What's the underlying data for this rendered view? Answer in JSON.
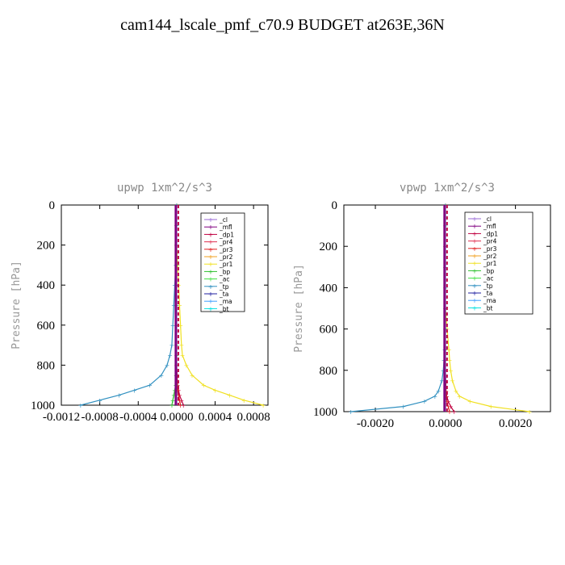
{
  "figure_title": "cam144_lscale_pmf_c70.9  BUDGET at263E,36N",
  "legend_entries": [
    "_cl",
    "_mfl",
    "_dp1",
    "_pr4",
    "_pr3",
    "_pr2",
    "_pr1",
    "_bp",
    "_ac",
    "_tp",
    "_ta",
    "_ma",
    "_bt"
  ],
  "series_colors": {
    "_cl": "#9a6ad6",
    "_mfl": "#800080",
    "_dp1": "#c00040",
    "_pr4": "#e03050",
    "_pr3": "#e02020",
    "_pr2": "#f0a020",
    "_pr1": "#f0e020",
    "_bp": "#30c030",
    "_ac": "#40e040",
    "_tp": "#3090c0",
    "_ta": "#2020a0",
    "_ma": "#40a0ff",
    "_bt": "#00e0e0"
  },
  "chart_data": [
    {
      "type": "line",
      "title": "upwp   1xm^2/s^3",
      "ylabel": "Pressure [hPa]",
      "xlabel": "",
      "ylim": [
        1000,
        0
      ],
      "xlim": [
        -0.0012,
        0.00095
      ],
      "xticks": [
        -0.0012,
        -0.0008,
        -0.0004,
        0.0,
        0.0004,
        0.0008
      ],
      "xtick_labels": [
        "-0.0012",
        "-0.0008",
        "-0.0004",
        "0.0000",
        "0.0004",
        "0.0008"
      ],
      "yticks": [
        0,
        200,
        400,
        600,
        800,
        1000
      ],
      "ytick_labels": [
        "0",
        "200",
        "400",
        "600",
        "800",
        "1000"
      ],
      "pressure": [
        0,
        100,
        200,
        300,
        400,
        500,
        600,
        700,
        750,
        800,
        850,
        900,
        925,
        950,
        975,
        1000
      ],
      "series": [
        {
          "name": "_cl",
          "values": [
            0,
            0,
            0,
            0,
            0,
            0,
            0,
            0,
            0,
            0,
            0,
            0,
            0,
            0,
            0,
            0
          ]
        },
        {
          "name": "_mfl",
          "values": [
            0,
            0,
            0,
            0,
            0,
            0,
            0,
            0,
            0,
            0,
            0,
            0,
            0,
            0,
            0,
            0
          ]
        },
        {
          "name": "_dp1",
          "values": [
            0,
            0,
            0,
            0,
            0,
            0,
            0,
            0,
            0,
            0,
            5e-06,
            1e-05,
            2e-05,
            3e-05,
            5e-05,
            7e-05
          ]
        },
        {
          "name": "_pr4",
          "values": [
            0,
            0,
            0,
            0,
            0,
            0,
            0,
            0,
            0,
            0,
            0,
            0,
            0,
            0,
            0,
            0
          ]
        },
        {
          "name": "_pr3",
          "values": [
            0,
            0,
            0,
            0,
            0,
            0,
            0,
            0,
            0,
            0,
            0,
            5e-06,
            1e-05,
            2e-05,
            3e-05,
            4e-05
          ]
        },
        {
          "name": "_pr2",
          "values": [
            0,
            0,
            0,
            0,
            0,
            0,
            0,
            0,
            0,
            0,
            0,
            0,
            0,
            0,
            0,
            0
          ]
        },
        {
          "name": "_pr1",
          "values": [
            0,
            0,
            0,
            1e-05,
            2e-05,
            3e-05,
            4e-05,
            5e-05,
            6e-05,
            0.0001,
            0.00016,
            0.00028,
            0.0004,
            0.00055,
            0.0007,
            0.0009
          ]
        },
        {
          "name": "_bp",
          "values": [
            0,
            0,
            0,
            0,
            0,
            0,
            0,
            0,
            0,
            0,
            -5e-06,
            -1e-05,
            -2e-05,
            -3e-05,
            -4e-05,
            -5e-05
          ]
        },
        {
          "name": "_ac",
          "values": [
            0,
            0,
            0,
            0,
            0,
            0,
            0,
            0,
            0,
            0,
            0,
            0,
            0,
            0,
            0,
            0
          ]
        },
        {
          "name": "_tp",
          "values": [
            0,
            0,
            0,
            -1e-05,
            -2e-05,
            -3e-05,
            -4e-05,
            -5e-05,
            -7e-05,
            -0.0001,
            -0.00016,
            -0.00028,
            -0.00044,
            -0.0006,
            -0.0008,
            -0.001
          ]
        },
        {
          "name": "_ta",
          "values": [
            0,
            0,
            0,
            0,
            0,
            0,
            0,
            0,
            0,
            0,
            0,
            0,
            0,
            0,
            0,
            0
          ]
        },
        {
          "name": "_ma",
          "values": [
            0,
            0,
            0,
            0,
            0,
            0,
            0,
            0,
            0,
            0,
            0,
            0,
            0,
            0,
            0,
            0
          ]
        },
        {
          "name": "_bt",
          "values": [
            0,
            0,
            0,
            0,
            0,
            0,
            0,
            0,
            0,
            0,
            0,
            0,
            0,
            0,
            0,
            0
          ]
        }
      ]
    },
    {
      "type": "line",
      "title": "vpwp   1xm^2/s^3",
      "ylabel": "Pressure [hPa]",
      "xlabel": "",
      "ylim": [
        1000,
        0
      ],
      "xlim": [
        -0.0029,
        0.003
      ],
      "xticks": [
        -0.002,
        0.0,
        0.002
      ],
      "xtick_labels": [
        "-0.0020",
        "0.0000",
        "0.0020"
      ],
      "yticks": [
        0,
        200,
        400,
        600,
        800,
        1000
      ],
      "ytick_labels": [
        "0",
        "200",
        "400",
        "600",
        "800",
        "1000"
      ],
      "pressure": [
        0,
        100,
        200,
        300,
        400,
        500,
        600,
        700,
        750,
        800,
        850,
        900,
        925,
        950,
        975,
        1000
      ],
      "series": [
        {
          "name": "_cl",
          "values": [
            0,
            0,
            0,
            0,
            0,
            0,
            0,
            0,
            0,
            0,
            0,
            0,
            0,
            0,
            0,
            0
          ]
        },
        {
          "name": "_mfl",
          "values": [
            0,
            0,
            0,
            0,
            0,
            0,
            0,
            0,
            0,
            0,
            0,
            0,
            0,
            0,
            0,
            0
          ]
        },
        {
          "name": "_dp1",
          "values": [
            0,
            0,
            0,
            0,
            0,
            0,
            0,
            0,
            0,
            0,
            1e-05,
            2e-05,
            4e-05,
            8e-05,
            0.00015,
            0.00025
          ]
        },
        {
          "name": "_pr4",
          "values": [
            0,
            0,
            0,
            0,
            0,
            0,
            0,
            0,
            0,
            0,
            0,
            0,
            0,
            0,
            0,
            0
          ]
        },
        {
          "name": "_pr3",
          "values": [
            0,
            0,
            0,
            0,
            0,
            0,
            0,
            0,
            0,
            0,
            0,
            1e-05,
            2e-05,
            4e-05,
            8e-05,
            0.00012
          ]
        },
        {
          "name": "_pr2",
          "values": [
            0,
            0,
            0,
            0,
            0,
            0,
            0,
            0,
            0,
            0,
            0,
            0,
            0,
            0,
            0,
            0
          ]
        },
        {
          "name": "_pr1",
          "values": [
            0,
            0,
            0,
            0,
            0,
            0,
            5e-05,
            0.0001,
            0.00012,
            0.00015,
            0.0002,
            0.0003,
            0.0004,
            0.0007,
            0.0013,
            0.0024
          ]
        },
        {
          "name": "_bp",
          "values": [
            0,
            0,
            0,
            0,
            0,
            0,
            0,
            0,
            0,
            0,
            0,
            0,
            0,
            0,
            0,
            0
          ]
        },
        {
          "name": "_ac",
          "values": [
            0,
            0,
            0,
            0,
            0,
            0,
            0,
            0,
            0,
            0,
            0,
            0,
            0,
            0,
            0,
            0
          ]
        },
        {
          "name": "_tp",
          "values": [
            0,
            0,
            0,
            0,
            0,
            0,
            0,
            -2e-05,
            -4e-05,
            -6e-05,
            -0.0001,
            -0.0002,
            -0.0003,
            -0.0006,
            -0.0012,
            -0.0027
          ]
        },
        {
          "name": "_ta",
          "values": [
            0,
            0,
            0,
            0,
            0,
            0,
            0,
            0,
            0,
            0,
            0,
            0,
            0,
            0,
            0,
            0
          ]
        },
        {
          "name": "_ma",
          "values": [
            0,
            0,
            0,
            0,
            0,
            0,
            0,
            0,
            0,
            0,
            0,
            0,
            0,
            0,
            0,
            0
          ]
        },
        {
          "name": "_bt",
          "values": [
            0,
            0,
            0,
            0,
            0,
            0,
            0,
            0,
            0,
            0,
            0,
            0,
            0,
            0,
            0,
            0
          ]
        }
      ]
    }
  ]
}
